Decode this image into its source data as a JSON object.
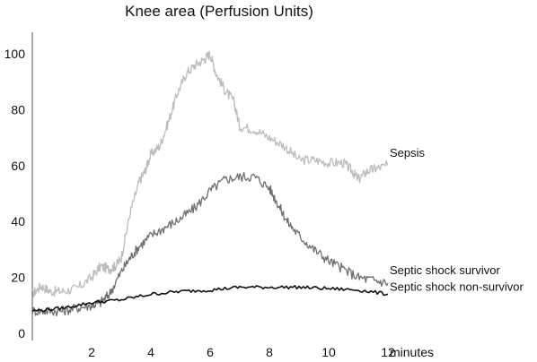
{
  "chart_data": {
    "type": "line",
    "title": "Knee area (Perfusion Units)",
    "xlabel": "minutes",
    "ylabel": "",
    "xlim": [
      0,
      12
    ],
    "ylim": [
      0,
      105
    ],
    "xticks": [
      2,
      4,
      6,
      8,
      10,
      12
    ],
    "yticks": [
      0,
      20,
      40,
      60,
      80,
      100
    ],
    "grid": false,
    "legend": "inline-right",
    "series": [
      {
        "name": "Sepsis",
        "color": "#bdbdbd",
        "x": [
          0,
          0.3,
          0.6,
          1.0,
          1.5,
          2.0,
          2.3,
          2.6,
          2.8,
          3.0,
          3.3,
          3.6,
          3.8,
          4.0,
          4.3,
          4.6,
          4.9,
          5.2,
          5.5,
          5.8,
          6.0,
          6.2,
          6.5,
          6.8,
          7.0,
          7.5,
          8.0,
          8.5,
          9.0,
          9.5,
          10.0,
          10.5,
          10.8,
          11.0,
          11.3,
          11.6,
          12.0
        ],
        "y": [
          14,
          17,
          15,
          15,
          16,
          20,
          24,
          23,
          24,
          27,
          43,
          54,
          58,
          64,
          67,
          76,
          86,
          93,
          96,
          98,
          100,
          93,
          87,
          83,
          74,
          73,
          70,
          67,
          62,
          62,
          61,
          61,
          58,
          55,
          58,
          59,
          60
        ]
      },
      {
        "name": "Septic shock survivor",
        "color": "#707070",
        "x": [
          0,
          0.5,
          1.0,
          1.5,
          2.0,
          2.3,
          2.6,
          3.0,
          3.3,
          3.6,
          4.0,
          4.5,
          5.0,
          5.5,
          6.0,
          6.5,
          7.0,
          7.5,
          8.0,
          8.3,
          8.6,
          9.0,
          9.5,
          10.0,
          10.5,
          11.0,
          11.5,
          12.0
        ],
        "y": [
          8,
          8,
          8,
          9,
          10,
          11,
          14,
          22,
          27,
          31,
          35,
          38,
          41,
          45,
          51,
          55,
          56,
          56,
          52,
          46,
          40,
          35,
          30,
          26,
          23,
          20,
          19,
          18
        ]
      },
      {
        "name": "Septic shock non-survivor",
        "color": "#111111",
        "x": [
          0,
          1,
          2,
          3,
          4,
          5,
          6,
          7,
          8,
          9,
          10,
          11,
          12
        ],
        "y": [
          8,
          9,
          11,
          12,
          14,
          15,
          15.5,
          16.5,
          16.5,
          16.5,
          16,
          15.5,
          14
        ]
      }
    ]
  }
}
